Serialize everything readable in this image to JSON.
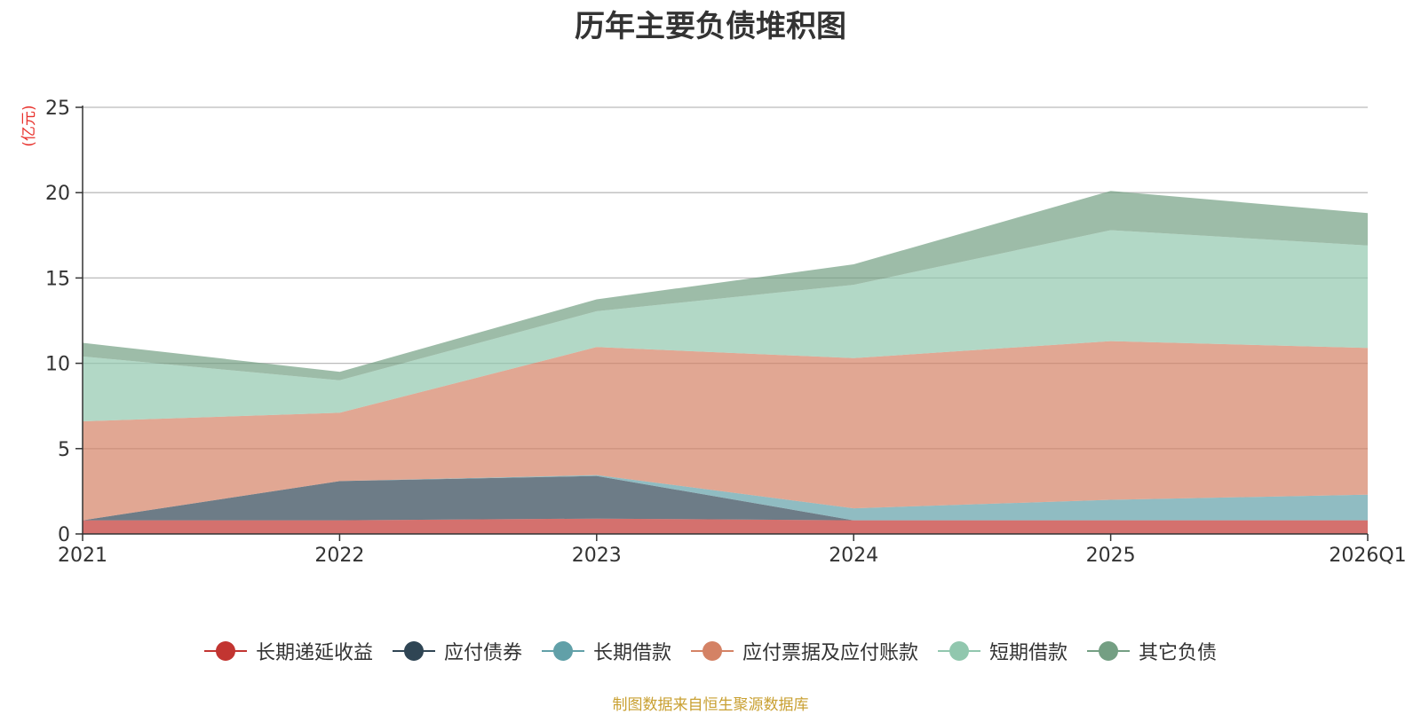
{
  "chart_data": {
    "type": "area",
    "stacked": true,
    "title": "历年主要负债堆积图",
    "ylabel": "(亿元)",
    "xlabel": "",
    "ylim": [
      0,
      25
    ],
    "yticks": [
      0,
      5,
      10,
      15,
      20,
      25
    ],
    "categories": [
      "2021",
      "2022",
      "2023",
      "2024",
      "2025",
      "2026Q1"
    ],
    "series": [
      {
        "name": "长期递延收益",
        "color": "#c23531",
        "values": [
          0.8,
          0.8,
          0.9,
          0.8,
          0.8,
          0.8
        ]
      },
      {
        "name": "应付债券",
        "color": "#2f4554",
        "values": [
          0.0,
          2.3,
          2.5,
          0.0,
          0.0,
          0.0
        ]
      },
      {
        "name": "长期借款",
        "color": "#61a0a8",
        "values": [
          0.0,
          0.0,
          0.05,
          0.7,
          1.2,
          1.5
        ]
      },
      {
        "name": "应付票据及应付账款",
        "color": "#d48265",
        "values": [
          5.8,
          4.0,
          7.5,
          8.8,
          9.3,
          8.6
        ]
      },
      {
        "name": "短期借款",
        "color": "#91c7ae",
        "values": [
          3.8,
          1.9,
          2.1,
          4.3,
          6.5,
          6.0
        ]
      },
      {
        "name": "其它负债",
        "color": "#749f83",
        "values": [
          0.8,
          0.5,
          0.7,
          1.2,
          2.3,
          1.9
        ]
      }
    ],
    "legend_position": "bottom",
    "grid": true
  },
  "source_note": "制图数据来自恒生聚源数据库"
}
